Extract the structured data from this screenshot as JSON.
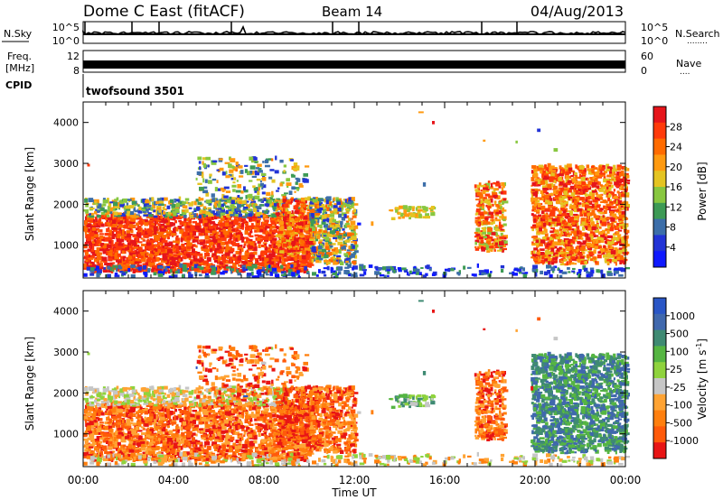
{
  "header": {
    "title": "Dome C East (fitACF)",
    "beam": "Beam 14",
    "date": "04/Aug/2013"
  },
  "panels": {
    "nsky": {
      "label": "N.Sky",
      "right_label": "N.Search",
      "right_dots": "........",
      "ticks": [
        "10^5",
        "10^0"
      ],
      "ylim": [
        0,
        100000
      ]
    },
    "freq": {
      "label_line1": "Freq.",
      "label_line2": "[MHz]",
      "right_label": "Nave",
      "right_dots": "....",
      "left_ticks": [
        "12",
        "8"
      ],
      "right_ticks": [
        "60",
        "0"
      ],
      "freq_value": 10,
      "nave_value": 30
    },
    "cpid": {
      "label": "CPID",
      "name": "twofsound 3501"
    }
  },
  "axes": {
    "x_ticks": [
      "00:00",
      "04:00",
      "08:00",
      "12:00",
      "16:00",
      "20:00",
      "00:00"
    ],
    "x_label": "Time UT",
    "y_label": "Slant Range [km]",
    "y_ticks": [
      "4000",
      "3000",
      "2000",
      "1000"
    ],
    "ylim": [
      200,
      4500
    ]
  },
  "colorbars": {
    "power": {
      "label": "Power [dB]",
      "ticks": [
        "28",
        "24",
        "20",
        "16",
        "12",
        "8",
        "4"
      ],
      "colors": [
        "#e6151b",
        "#ff3a0a",
        "#ff6b00",
        "#ff9a10",
        "#e4c422",
        "#88c740",
        "#3d9a55",
        "#3c6ea9",
        "#2233d6",
        "#0f19ff"
      ]
    },
    "velocity": {
      "label": "Velocity [m s",
      "label_sup": "-1",
      "label_end": "]",
      "ticks": [
        "1000",
        "500",
        "100",
        "25",
        "-25",
        "-100",
        "-500",
        "-1000"
      ],
      "colors": [
        "#2a56c6",
        "#4068ad",
        "#3f8a73",
        "#55b542",
        "#8fd33d",
        "#c6c6c6",
        "#ffa333",
        "#ff7f0e",
        "#ff5a0a",
        "#e81515"
      ]
    }
  },
  "chart_data": {
    "type": "heatmap",
    "title": "Dome C East (fitACF)",
    "x_range": [
      "00:00",
      "24:00"
    ],
    "xlabel": "Time UT",
    "ylabel": "Slant Range [km]",
    "ylim": [
      200,
      4500
    ],
    "echo_regions": [
      {
        "t": [
          0,
          10
        ],
        "r": [
          300,
          1700
        ],
        "power": "20-30 dB",
        "velocity": "-25 to -500 m/s"
      },
      {
        "t": [
          0,
          9
        ],
        "r": [
          1800,
          2000
        ],
        "power": "4-12 dB",
        "velocity": "25 to -100 m/s"
      },
      {
        "t": [
          5,
          10
        ],
        "r": [
          1700,
          3100
        ],
        "power": "8-20 dB",
        "velocity": "-25 to -500 m/s"
      },
      {
        "t": [
          10,
          12
        ],
        "r": [
          500,
          2100
        ],
        "power": "4-20 dB",
        "velocity": "-100 to -500 m/s"
      },
      {
        "t": [
          13.5,
          15.5
        ],
        "r": [
          1600,
          1900
        ],
        "power": "12-20 dB",
        "velocity": "100 to -100 m/s"
      },
      {
        "t": [
          17.5,
          18.5
        ],
        "r": [
          800,
          2500
        ],
        "power": "16-28 dB",
        "velocity": "-100 to -500 m/s"
      },
      {
        "t": [
          20,
          24
        ],
        "r": [
          500,
          2900
        ],
        "power": "16-30 dB",
        "velocity": "100 to 500 m/s"
      }
    ]
  }
}
